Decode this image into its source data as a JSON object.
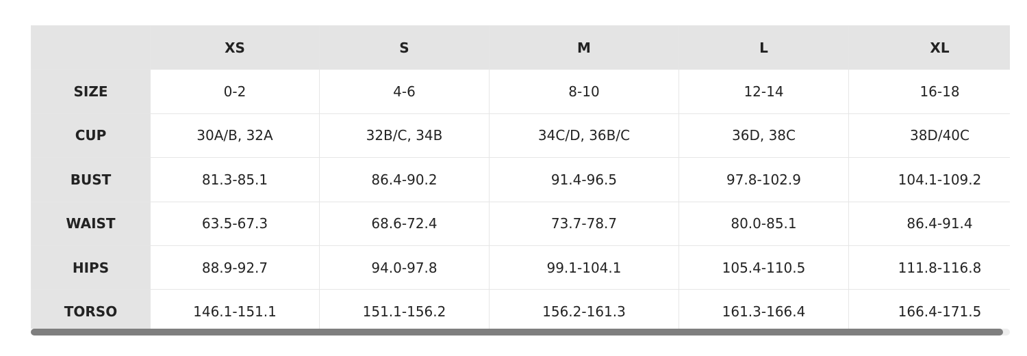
{
  "table": {
    "columns": [
      "XS",
      "S",
      "M",
      "L",
      "XL"
    ],
    "rows": [
      {
        "label": "SIZE",
        "cells": [
          "0-2",
          "4-6",
          "8-10",
          "12-14",
          "16-18"
        ]
      },
      {
        "label": "CUP",
        "cells": [
          "30A/B, 32A",
          "32B/C, 34B",
          "34C/D, 36B/C",
          "36D, 38C",
          "38D/40C"
        ]
      },
      {
        "label": "BUST",
        "cells": [
          "81.3-85.1",
          "86.4-90.2",
          "91.4-96.5",
          "97.8-102.9",
          "104.1-109.2"
        ]
      },
      {
        "label": "WAIST",
        "cells": [
          "63.5-67.3",
          "68.6-72.4",
          "73.7-78.7",
          "80.0-85.1",
          "86.4-91.4"
        ]
      },
      {
        "label": "HIPS",
        "cells": [
          "88.9-92.7",
          "94.0-97.8",
          "99.1-104.1",
          "105.4-110.5",
          "111.8-116.8"
        ]
      },
      {
        "label": "TORSO",
        "cells": [
          "146.1-151.1",
          "151.1-156.2",
          "156.2-161.3",
          "161.3-166.4",
          "166.4-171.5"
        ]
      }
    ]
  }
}
